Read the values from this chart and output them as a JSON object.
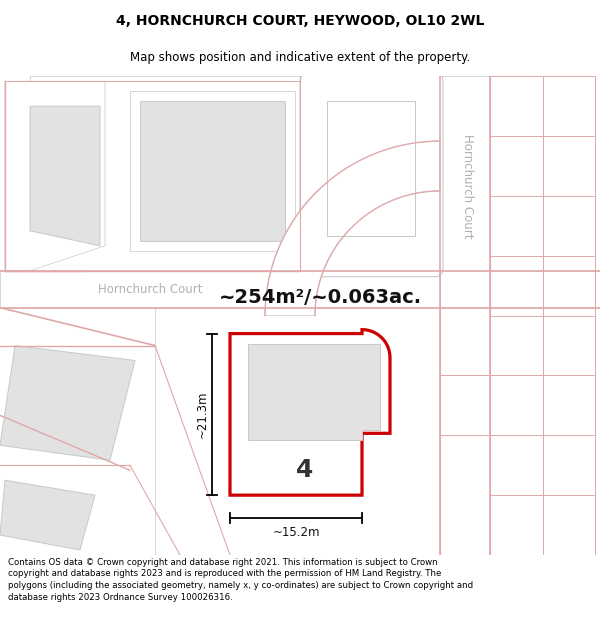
{
  "title_line1": "4, HORNCHURCH COURT, HEYWOOD, OL10 2WL",
  "title_line2": "Map shows position and indicative extent of the property.",
  "footer_text": "Contains OS data © Crown copyright and database right 2021. This information is subject to Crown copyright and database rights 2023 and is reproduced with the permission of HM Land Registry. The polygons (including the associated geometry, namely x, y co-ordinates) are subject to Crown copyright and database rights 2023 Ordnance Survey 100026316.",
  "area_label": "~254m²/~0.063ac.",
  "number_label": "4",
  "dim_h": "~21.3m",
  "dim_w": "~15.2m",
  "street_label_h": "Hornchurch Court",
  "street_label_v": "Hornchurch Court",
  "bg_color": "#f2eeee",
  "road_fill": "#ffffff",
  "plot_fill": "#ffffff",
  "plot_stroke": "#cc0000",
  "road_stroke": "#c8c8c8",
  "other_stroke": "#e0a8a8",
  "building_fill": "#e2e2e2",
  "title_fontsize": 10,
  "subtitle_fontsize": 8.5,
  "footer_fontsize": 6.2,
  "area_fontsize": 14,
  "number_fontsize": 18,
  "street_fontsize": 8.5
}
